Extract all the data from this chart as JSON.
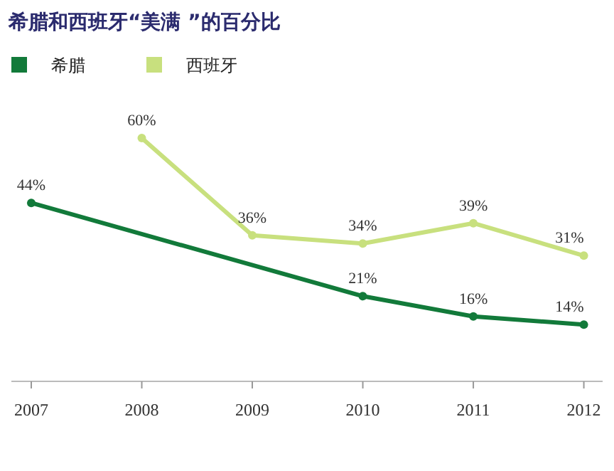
{
  "chart_data": {
    "type": "line",
    "title": "希腊和西班牙“美满 ”的百分比",
    "xticks": [
      2007,
      2008,
      2009,
      2010,
      2011,
      2012
    ],
    "xlim": [
      2006.82,
      2012.17
    ],
    "legend": "top left",
    "marker": "circle",
    "grid": false,
    "series": [
      {
        "name": "希腊",
        "color": "#127a3a",
        "x": [
          2007,
          2010,
          2011,
          2012
        ],
        "values": [
          44,
          21,
          16,
          14
        ],
        "value_labels": [
          "44%",
          "21%",
          "16%",
          "14%"
        ]
      },
      {
        "name": "西班牙",
        "color": "#c8e07e",
        "x": [
          2008,
          2009,
          2010,
          2011,
          2012
        ],
        "values": [
          60,
          36,
          34,
          39,
          31
        ],
        "value_labels": [
          "60%",
          "36%",
          "34%",
          "39%",
          "31%"
        ]
      }
    ]
  }
}
